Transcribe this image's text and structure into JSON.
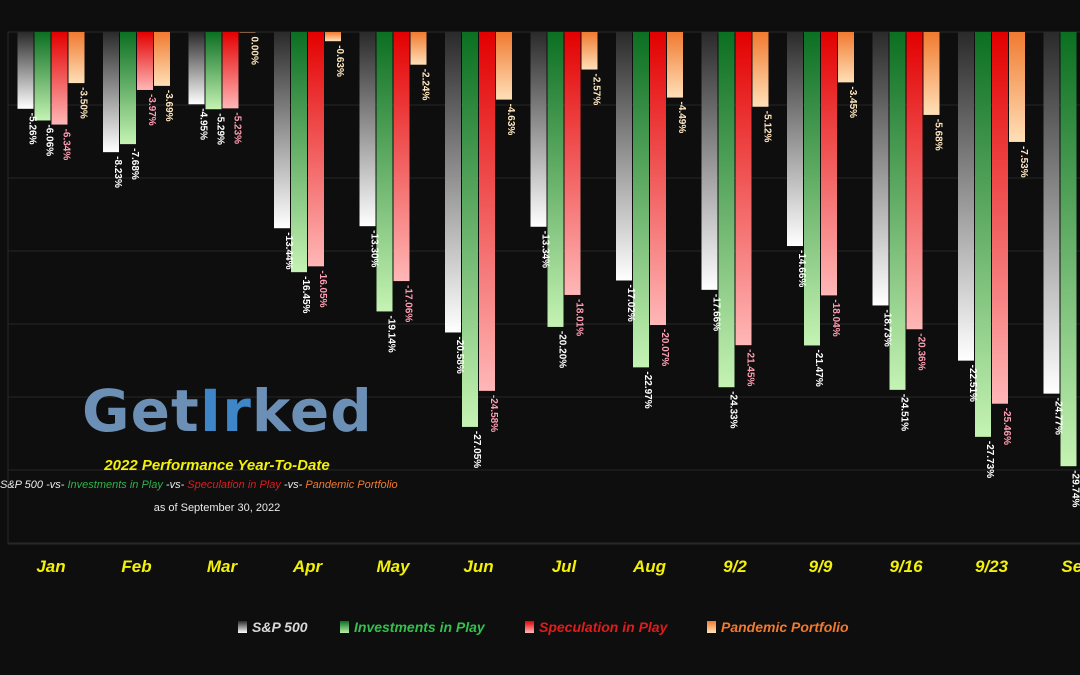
{
  "logo": {
    "part1": "Get",
    "part2": "Ir",
    "part3": "ked"
  },
  "subtitle": "2022 Performance Year-To-Date",
  "vs": {
    "sp": "S&P 500",
    "sep1": " -vs- ",
    "ip": "Investments in Play",
    "sep2": " -vs- ",
    "sip": "Speculation in Play",
    "sep3": " -vs- ",
    "pp": "Pandemic Portfolio"
  },
  "as_of": "as of September 30, 2022",
  "colors": {
    "sp": "#d8d8d8",
    "ip": "#1f8e35",
    "sip": "#dd1a1a",
    "pp": "#f07a30",
    "month_label": "#f3f00a",
    "background": "#0e0e0e",
    "grid": "#2b2b2b"
  },
  "chart_data": {
    "type": "bar",
    "categories": [
      "Jan",
      "Feb",
      "Mar",
      "Apr",
      "May",
      "Jun",
      "Jul",
      "Aug",
      "9/2",
      "9/9",
      "9/16",
      "9/23",
      "Sep"
    ],
    "series": [
      {
        "name": "S&P 500",
        "values": [
          -5.26,
          -8.23,
          -4.95,
          -13.44,
          -13.3,
          -20.58,
          -13.34,
          -17.02,
          -17.66,
          -14.66,
          -18.73,
          -22.51,
          -24.77
        ]
      },
      {
        "name": "Investments in Play",
        "values": [
          -6.06,
          -7.68,
          -5.29,
          -16.45,
          -19.14,
          -27.05,
          -20.2,
          -22.97,
          -24.33,
          -21.47,
          -24.51,
          -27.73,
          -29.74
        ]
      },
      {
        "name": "Speculation in Play",
        "values": [
          -6.34,
          -3.97,
          -5.23,
          -16.05,
          -17.06,
          -24.58,
          -18.01,
          -20.07,
          -21.45,
          -18.04,
          -20.36,
          -25.46,
          null
        ]
      },
      {
        "name": "Pandemic Portfolio",
        "values": [
          -3.5,
          -3.69,
          0.0,
          -0.63,
          -2.24,
          -4.63,
          -2.57,
          -4.49,
          -5.12,
          -3.45,
          -5.68,
          -7.53,
          null
        ]
      }
    ],
    "ylim": [
      -35,
      0
    ],
    "grid": true,
    "legend": "bottom"
  }
}
